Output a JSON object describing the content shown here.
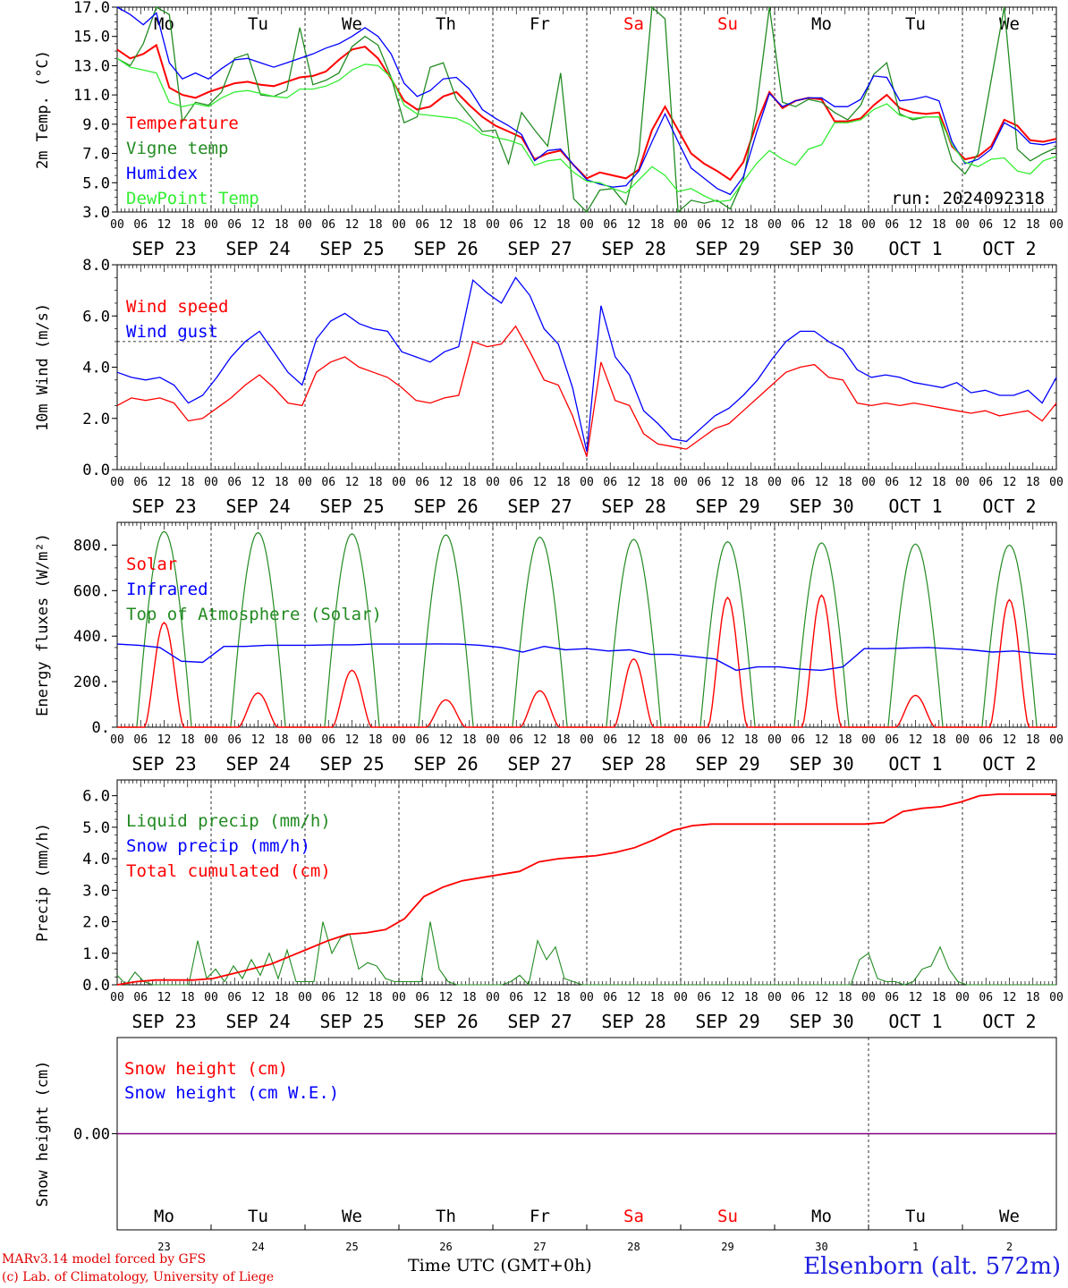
{
  "chart_data": [
    {
      "type": "line",
      "ylabel": "2m Temp. (°C)",
      "ylim": [
        3.0,
        17.0
      ],
      "yticks": [
        "3.0",
        "5.0",
        "7.0",
        "9.0",
        "11.0",
        "13.0",
        "15.0",
        "17.0"
      ],
      "weekdays": [
        "Mo",
        "Tu",
        "We",
        "Th",
        "Fr",
        "Sa",
        "Su",
        "Mo",
        "Tu",
        "We"
      ],
      "annotation": "run: 2024092318",
      "series": [
        {
          "name": "Temperature",
          "color": "#ff0000",
          "values": [
            14.1,
            13.5,
            13.8,
            14.4,
            11.5,
            11.0,
            10.8,
            11.2,
            11.5,
            11.8,
            11.9,
            11.7,
            11.6,
            11.9,
            12.2,
            12.3,
            12.6,
            13.4,
            14.1,
            14.3,
            13.5,
            12.1,
            10.6,
            10.0,
            10.2,
            10.9,
            11.2,
            10.3,
            9.5,
            8.9,
            8.5,
            8.1,
            6.6,
            7.0,
            7.2,
            6.2,
            5.3,
            5.7,
            5.5,
            5.3,
            5.9,
            8.6,
            10.2,
            8.6,
            7.0,
            6.3,
            5.8,
            5.2,
            6.4,
            9.0,
            11.2,
            10.1,
            10.6,
            10.8,
            10.7,
            9.2,
            9.2,
            9.4,
            10.3,
            11.0,
            10.1,
            9.8,
            9.7,
            9.8,
            7.5,
            6.6,
            6.8,
            7.5,
            9.3,
            8.9,
            7.9,
            7.8,
            8.0
          ]
        },
        {
          "name": "Vigne temp",
          "color": "#228b22",
          "values": [
            13.5,
            13.0,
            14.5,
            17.0,
            16.5,
            9.2,
            10.5,
            10.3,
            11.2,
            13.5,
            13.8,
            11.0,
            10.9,
            11.3,
            15.6,
            11.7,
            12.0,
            12.5,
            14.3,
            15.0,
            14.4,
            12.2,
            9.1,
            9.5,
            12.9,
            13.2,
            10.7,
            9.6,
            8.5,
            8.6,
            6.3,
            9.8,
            8.6,
            7.5,
            12.5,
            3.9,
            3.0,
            4.5,
            4.6,
            3.5,
            7.0,
            17.3,
            16.2,
            3.0,
            3.8,
            3.6,
            3.8,
            3.2,
            5.2,
            10.0,
            17.0,
            10.5,
            10.2,
            10.7,
            10.5,
            9.8,
            9.3,
            10.3,
            12.4,
            13.2,
            9.7,
            9.3,
            9.5,
            9.5,
            6.5,
            5.6,
            7.0,
            12.0,
            17.6,
            7.3,
            6.5,
            7.0,
            7.4
          ]
        },
        {
          "name": "Humidex",
          "color": "#0000ff",
          "values": [
            17.2,
            16.5,
            15.8,
            16.6,
            13.2,
            12.1,
            12.5,
            12.1,
            12.8,
            13.4,
            13.5,
            13.2,
            12.9,
            13.2,
            13.5,
            13.8,
            14.2,
            14.5,
            15.0,
            15.6,
            15.0,
            13.8,
            11.8,
            10.9,
            11.3,
            12.1,
            12.2,
            11.4,
            10.0,
            9.4,
            8.9,
            8.3,
            6.5,
            7.2,
            7.3,
            6.2,
            5.2,
            4.9,
            4.7,
            4.8,
            5.8,
            7.8,
            9.7,
            7.8,
            6.0,
            5.3,
            4.6,
            4.2,
            5.4,
            8.4,
            11.1,
            10.2,
            10.6,
            10.8,
            10.8,
            10.2,
            10.2,
            10.7,
            12.3,
            12.2,
            10.6,
            10.7,
            10.9,
            10.6,
            7.8,
            6.3,
            6.6,
            7.3,
            9.1,
            8.6,
            7.7,
            7.6,
            7.8
          ]
        },
        {
          "name": "DewPoint Temp",
          "color": "#33ee33",
          "values": [
            13.5,
            12.9,
            12.7,
            12.5,
            10.5,
            10.2,
            10.4,
            10.2,
            10.8,
            11.2,
            11.3,
            11.1,
            10.9,
            10.8,
            11.4,
            11.4,
            11.6,
            12.0,
            12.7,
            13.1,
            13.0,
            12.2,
            10.3,
            9.7,
            9.6,
            9.5,
            9.4,
            9.0,
            8.3,
            8.1,
            7.9,
            7.6,
            6.2,
            6.5,
            6.6,
            5.7,
            5.1,
            5.0,
            4.6,
            4.3,
            5.2,
            6.1,
            5.5,
            4.4,
            4.6,
            4.1,
            3.7,
            3.8,
            5.1,
            6.3,
            7.2,
            6.6,
            6.2,
            7.3,
            7.6,
            9.1,
            9.1,
            9.3,
            10.0,
            10.4,
            9.6,
            9.4,
            9.5,
            9.5,
            7.6,
            6.4,
            6.1,
            6.6,
            6.7,
            5.8,
            5.6,
            6.5,
            6.8
          ]
        }
      ]
    },
    {
      "type": "line",
      "ylabel": "10m Wind (m/s)",
      "ylim": [
        0.0,
        8.0
      ],
      "yticks": [
        "0.0",
        "2.0",
        "4.0",
        "6.0",
        "8.0"
      ],
      "reference_line": 5.0,
      "series": [
        {
          "name": "Wind speed",
          "color": "#ff0000",
          "values": [
            2.5,
            2.8,
            2.7,
            2.8,
            2.6,
            1.9,
            2.0,
            2.4,
            2.8,
            3.3,
            3.7,
            3.2,
            2.6,
            2.5,
            3.8,
            4.2,
            4.4,
            4.0,
            3.8,
            3.6,
            3.2,
            2.7,
            2.6,
            2.8,
            2.9,
            5.0,
            4.8,
            4.9,
            5.6,
            4.6,
            3.5,
            3.3,
            2.1,
            0.5,
            4.2,
            2.7,
            2.5,
            1.4,
            1.0,
            0.9,
            0.8,
            1.2,
            1.6,
            1.8,
            2.3,
            2.8,
            3.3,
            3.8,
            4.0,
            4.1,
            3.6,
            3.5,
            2.6,
            2.5,
            2.6,
            2.5,
            2.6,
            2.5,
            2.4,
            2.3,
            2.2,
            2.3,
            2.1,
            2.2,
            2.3,
            1.9,
            2.6
          ]
        },
        {
          "name": "Wind gust",
          "color": "#0000ff",
          "values": [
            3.8,
            3.6,
            3.5,
            3.6,
            3.3,
            2.6,
            2.9,
            3.6,
            4.4,
            5.0,
            5.4,
            4.6,
            3.8,
            3.3,
            5.1,
            5.8,
            6.1,
            5.7,
            5.5,
            5.4,
            4.6,
            4.4,
            4.2,
            4.6,
            4.8,
            7.4,
            6.9,
            6.5,
            7.5,
            6.8,
            5.5,
            4.9,
            3.2,
            0.7,
            6.4,
            4.4,
            3.7,
            2.3,
            1.8,
            1.2,
            1.1,
            1.6,
            2.1,
            2.4,
            2.9,
            3.5,
            4.3,
            5.0,
            5.4,
            5.4,
            5.0,
            4.7,
            3.9,
            3.6,
            3.7,
            3.6,
            3.4,
            3.3,
            3.2,
            3.4,
            3.0,
            3.1,
            2.9,
            2.9,
            3.1,
            2.6,
            3.6
          ]
        }
      ]
    },
    {
      "type": "line",
      "ylabel": "Energy fluxes (W/m²)",
      "ylim": [
        0,
        900
      ],
      "yticks": [
        "0.",
        "200.",
        "400.",
        "600.",
        "800."
      ],
      "series": [
        {
          "name": "Solar",
          "color": "#ff0000",
          "daily_peak": [
            460,
            150,
            250,
            120,
            160,
            300,
            570,
            580,
            140,
            560
          ]
        },
        {
          "name": "Infrared",
          "color": "#0000ff",
          "values": [
            365,
            360,
            350,
            290,
            285,
            355,
            355,
            360,
            360,
            360,
            362,
            362,
            365,
            365,
            365,
            366,
            365,
            360,
            350,
            330,
            355,
            340,
            345,
            335,
            340,
            320,
            320,
            310,
            300,
            250,
            265,
            265,
            255,
            250,
            265,
            345,
            345,
            348,
            350,
            345,
            340,
            330,
            335,
            325,
            320
          ]
        },
        {
          "name": "Top of Atmosphere (Solar)",
          "color": "#228b22",
          "daily_peak": [
            860,
            855,
            850,
            845,
            835,
            825,
            815,
            810,
            805,
            800
          ]
        }
      ]
    },
    {
      "type": "line",
      "ylabel": "Precip (mm/h)",
      "ylim": [
        0.0,
        6.5
      ],
      "yticks": [
        "0.0",
        "1.0",
        "2.0",
        "3.0",
        "4.0",
        "5.0",
        "6.0"
      ],
      "series": [
        {
          "name": "Liquid precip (mm/h)",
          "color": "#228b22",
          "values": [
            0.3,
            0.0,
            0.4,
            0.1,
            0.0,
            0.0,
            0.0,
            0.0,
            0.0,
            1.4,
            0.2,
            0.5,
            0.1,
            0.6,
            0.2,
            0.8,
            0.3,
            1.0,
            0.2,
            1.1,
            0.1,
            0.1,
            0.1,
            2.0,
            1.0,
            1.5,
            1.6,
            0.5,
            0.7,
            0.6,
            0.2,
            0.1,
            0.1,
            0.1,
            0.1,
            2.0,
            0.5,
            0.1,
            0.0,
            0.0,
            0.0,
            0.0,
            0.0,
            0.0,
            0.1,
            0.3,
            0.0,
            1.4,
            0.8,
            1.2,
            0.2,
            0.1,
            0.0,
            0.0,
            0.0,
            0.0,
            0.0,
            0.0,
            0.0,
            0.0,
            0.0,
            0.0,
            0.0,
            0.0,
            0.0,
            0.0,
            0.0,
            0.0,
            0.0,
            0.0,
            0.0,
            0.0,
            0.0,
            0.0,
            0.0,
            0.0,
            0.0,
            0.0,
            0.0,
            0.0,
            0.0,
            0.0,
            0.0,
            0.8,
            1.0,
            0.2,
            0.1,
            0.1,
            0.0,
            0.1,
            0.5,
            0.6,
            1.2,
            0.5,
            0.1,
            0.0,
            0.0,
            0.0,
            0.0,
            0.0,
            0.0,
            0.0,
            0.0,
            0.0,
            0.0,
            0.0
          ]
        },
        {
          "name": "Snow precip (mm/h)",
          "color": "#0000ff",
          "values": [
            0,
            0
          ]
        },
        {
          "name": "Total cumulated (cm)",
          "color": "#ff0000",
          "values": [
            0.0,
            0.1,
            0.15,
            0.15,
            0.15,
            0.2,
            0.35,
            0.5,
            0.65,
            0.9,
            1.15,
            1.4,
            1.6,
            1.65,
            1.75,
            2.1,
            2.8,
            3.1,
            3.3,
            3.4,
            3.5,
            3.6,
            3.9,
            4.0,
            4.05,
            4.1,
            4.2,
            4.35,
            4.6,
            4.9,
            5.05,
            5.1,
            5.1,
            5.1,
            5.1,
            5.1,
            5.1,
            5.1,
            5.1,
            5.1,
            5.15,
            5.5,
            5.6,
            5.65,
            5.8,
            6.0,
            6.05,
            6.05,
            6.05,
            6.05
          ]
        }
      ]
    },
    {
      "type": "line",
      "ylabel": "Snow height (cm)",
      "yticks": [
        "0.00"
      ],
      "series": [
        {
          "name": "Snow height (cm)",
          "color": "#ff0000",
          "values": [
            0,
            0
          ]
        },
        {
          "name": "Snow height (cm W.E.)",
          "color": "#0000ff",
          "values": [
            0,
            0
          ]
        }
      ],
      "weekdays": [
        "Mo",
        "Tu",
        "We",
        "Th",
        "Fr",
        "Sa",
        "Su",
        "Mo",
        "Tu",
        "We"
      ],
      "day_numbers": [
        "23",
        "24",
        "25",
        "26",
        "27",
        "28",
        "29",
        "30",
        "1",
        "2"
      ],
      "xlabel": "Time UTC (GMT+0h)"
    }
  ],
  "date_labels": [
    "SEP 23",
    "SEP 24",
    "SEP 25",
    "SEP 26",
    "SEP 27",
    "SEP 28",
    "SEP 29",
    "SEP 30",
    "OCT  1",
    "OCT  2"
  ],
  "hour_labels": [
    "00",
    "06",
    "12",
    "18"
  ],
  "weekend_indices": [
    5,
    6
  ],
  "colors": {
    "weekday": "#000000",
    "weekend": "#ff0000",
    "frame": "#000000"
  },
  "footer": {
    "model": "MARv3.14 model forced by GFS",
    "credit": "(c) Lab. of Climatology, University of Liege",
    "time_label": "Time UTC (GMT+0h)",
    "station": "Elsenborn (alt. 572m)"
  }
}
